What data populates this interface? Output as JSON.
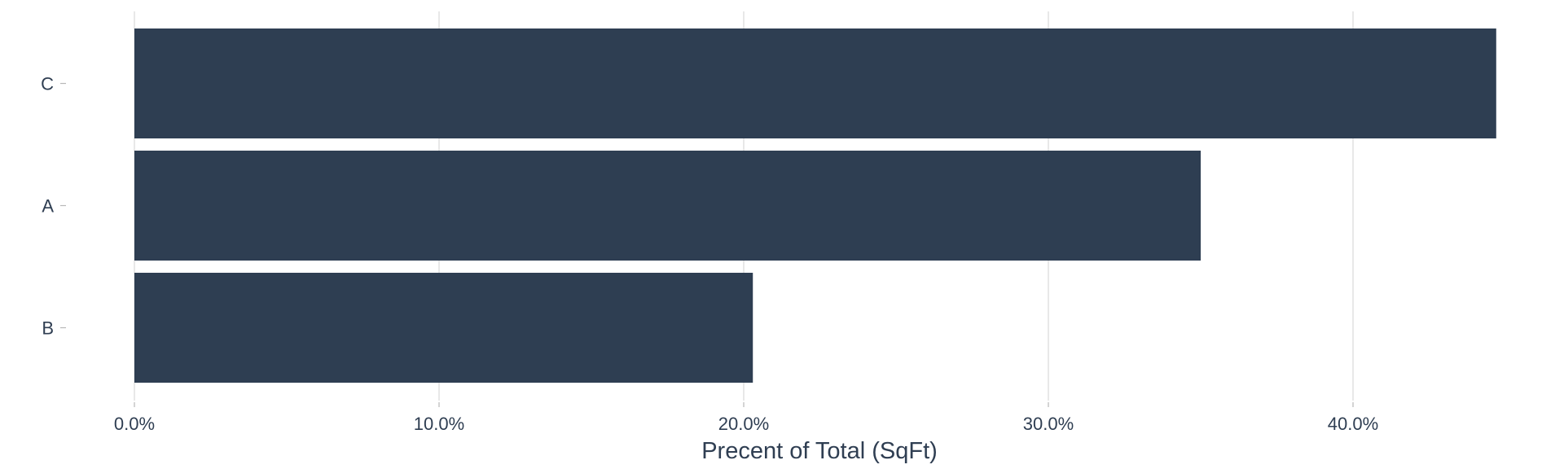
{
  "chart_data": {
    "type": "bar",
    "orientation": "horizontal",
    "categories": [
      "C",
      "A",
      "B"
    ],
    "values": [
      0.447,
      0.35,
      0.203
    ],
    "xlim": [
      0,
      0.45
    ],
    "x_ticks": [
      0,
      0.1,
      0.2,
      0.3,
      0.4
    ],
    "x_tick_labels": [
      "0.0%",
      "10.0%",
      "20.0%",
      "30.0%",
      "40.0%"
    ],
    "xlabel": "Precent of Total (SqFt)",
    "ylabel": "",
    "grid": "vertical",
    "legend": "none",
    "bar_color": "#2e3e52"
  }
}
